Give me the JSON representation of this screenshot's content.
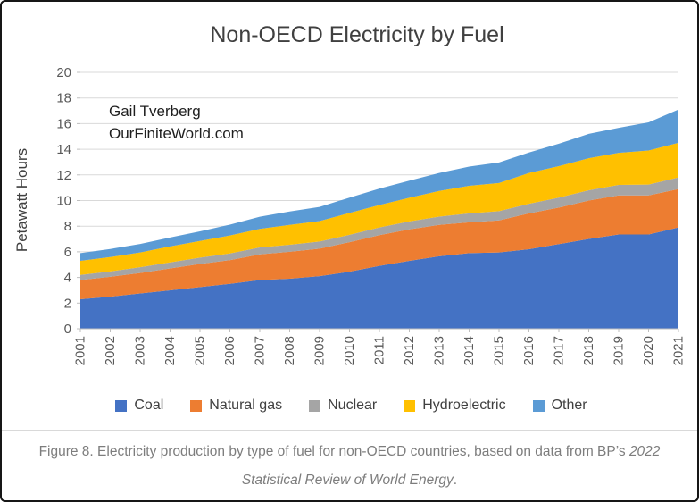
{
  "chart": {
    "title": "Non-OECD Electricity by Fuel",
    "y_axis_title": "Petawatt Hours",
    "annotation": {
      "line1": "Gail Tverberg",
      "line2": "OurFiniteWorld.com"
    }
  },
  "chart_data": {
    "type": "area",
    "stacked": true,
    "title": "Non-OECD Electricity by Fuel",
    "xlabel": "",
    "ylabel": "Petawatt Hours",
    "ylim": [
      0,
      20
    ],
    "y_tick_step": 2,
    "y_ticks": [
      0,
      2,
      4,
      6,
      8,
      10,
      12,
      14,
      16,
      18,
      20
    ],
    "grid": true,
    "legend_position": "bottom",
    "categories": [
      2001,
      2002,
      2003,
      2004,
      2005,
      2006,
      2007,
      2008,
      2009,
      2010,
      2011,
      2012,
      2013,
      2014,
      2015,
      2016,
      2017,
      2018,
      2019,
      2020,
      2021
    ],
    "series": [
      {
        "name": "Coal",
        "color": "#4472C4",
        "values": [
          2.3,
          2.5,
          2.75,
          3.0,
          3.25,
          3.5,
          3.8,
          3.9,
          4.1,
          4.45,
          4.9,
          5.3,
          5.65,
          5.9,
          5.95,
          6.2,
          6.6,
          7.0,
          7.35,
          7.35,
          7.9
        ]
      },
      {
        "name": "Natural gas",
        "color": "#ED7D31",
        "values": [
          1.5,
          1.55,
          1.6,
          1.7,
          1.8,
          1.85,
          2.0,
          2.1,
          2.15,
          2.3,
          2.4,
          2.45,
          2.45,
          2.4,
          2.5,
          2.8,
          2.85,
          3.0,
          3.05,
          3.05,
          3.0
        ]
      },
      {
        "name": "Nuclear",
        "color": "#A5A5A5",
        "values": [
          0.4,
          0.42,
          0.45,
          0.47,
          0.5,
          0.52,
          0.54,
          0.55,
          0.55,
          0.58,
          0.6,
          0.62,
          0.65,
          0.7,
          0.72,
          0.75,
          0.78,
          0.8,
          0.82,
          0.85,
          0.9
        ]
      },
      {
        "name": "Hydroelectric",
        "color": "#FFC000",
        "values": [
          1.1,
          1.12,
          1.15,
          1.25,
          1.3,
          1.4,
          1.45,
          1.55,
          1.6,
          1.7,
          1.75,
          1.85,
          2.0,
          2.15,
          2.2,
          2.4,
          2.45,
          2.5,
          2.5,
          2.65,
          2.7
        ]
      },
      {
        "name": "Other",
        "color": "#5B9BD5",
        "values": [
          0.6,
          0.63,
          0.66,
          0.7,
          0.75,
          0.85,
          0.95,
          1.05,
          1.1,
          1.2,
          1.28,
          1.33,
          1.4,
          1.5,
          1.6,
          1.6,
          1.75,
          1.9,
          1.95,
          2.2,
          2.6
        ]
      }
    ]
  },
  "style": {
    "grid_color": "#D9D9D9",
    "axis_color": "#BFBFBF",
    "tick_label_color": "#595959",
    "title_color": "#404040",
    "annotation_color": "#1f1f1f"
  },
  "caption": {
    "line1_normal": "Figure 8. Electricity production by type of fuel for non-OECD countries, based on data from BP’s ",
    "line1_italic": "2022",
    "line2_italic": "Statistical Review of World Energy",
    "line2_suffix": "."
  }
}
